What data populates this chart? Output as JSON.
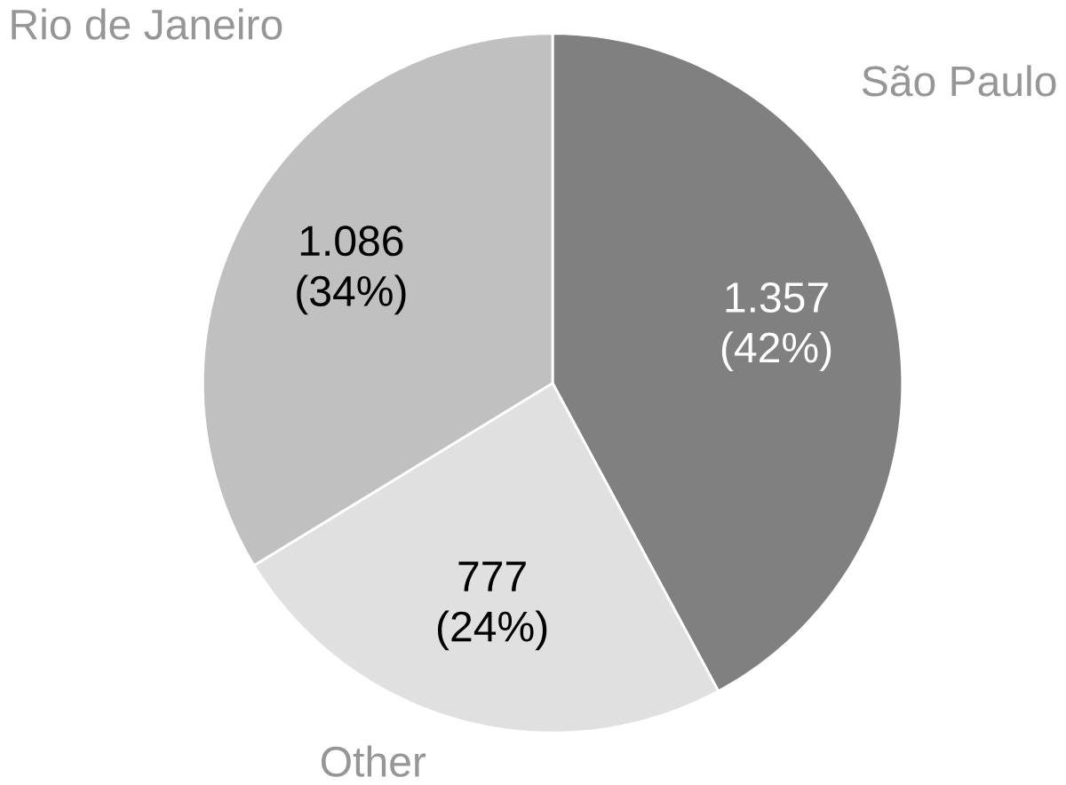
{
  "chart_data": {
    "type": "pie",
    "categories": [
      "São Paulo",
      "Other",
      "Rio de Janeiro"
    ],
    "values": [
      1357,
      777,
      1086
    ],
    "colors": [
      "#808080",
      "#e0e0e0",
      "#c0c0c0"
    ],
    "value_labels": [
      "1.357 (42%)",
      "777 (24%)",
      "1.086 (34%)"
    ]
  }
}
